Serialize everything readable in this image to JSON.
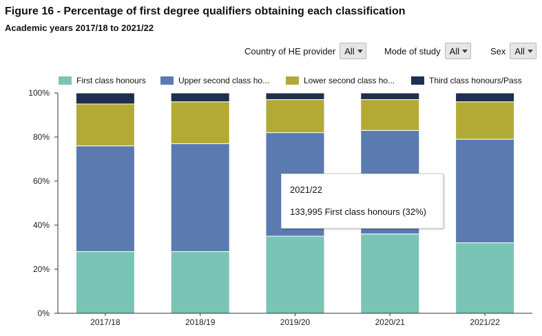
{
  "title": "Figure 16 - Percentage of first degree qualifiers obtaining each classification",
  "subtitle": "Academic years 2017/18 to 2021/22",
  "filters": [
    {
      "label": "Country of HE provider",
      "value": "All"
    },
    {
      "label": "Mode of study",
      "value": "All"
    },
    {
      "label": "Sex",
      "value": "All"
    }
  ],
  "colors": {
    "first": "#7bc3b5",
    "upper": "#5b7bb0",
    "lower": "#b3aa36",
    "third": "#1e2f50",
    "caret": "#2c3e66"
  },
  "legend": [
    {
      "label": "First class honours"
    },
    {
      "label": "Upper second class ho..."
    },
    {
      "label": "Lower second class ho..."
    },
    {
      "label": "Third class honours/Pass"
    }
  ],
  "tooltip": {
    "category": "2021/22",
    "text": "133,995 First class honours (32%)"
  },
  "chart_data": {
    "type": "bar",
    "stacked": true,
    "categories": [
      "2017/18",
      "2018/19",
      "2019/20",
      "2020/21",
      "2021/22"
    ],
    "series": [
      {
        "name": "First class honours",
        "values": [
          28,
          28,
          35,
          36,
          32
        ]
      },
      {
        "name": "Upper second class honours",
        "values": [
          48,
          49,
          47,
          47,
          47
        ]
      },
      {
        "name": "Lower second class honours",
        "values": [
          19,
          19,
          15,
          14,
          17
        ]
      },
      {
        "name": "Third class honours/Pass",
        "values": [
          5,
          4,
          3,
          3,
          4
        ]
      }
    ],
    "yticks": [
      "0%",
      "20%",
      "40%",
      "60%",
      "80%",
      "100%"
    ],
    "ylim": [
      0,
      100
    ],
    "title": "Figure 16 - Percentage of first degree qualifiers obtaining each classification",
    "xlabel": "",
    "ylabel": ""
  }
}
